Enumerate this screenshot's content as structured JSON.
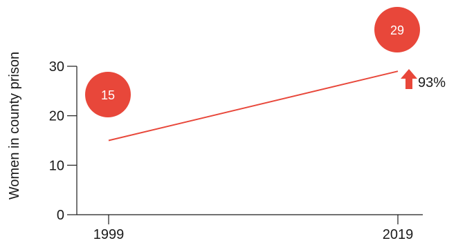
{
  "chart_data": {
    "type": "line",
    "ylabel": "Women in county prison",
    "x": [
      "1999",
      "2019"
    ],
    "series": [
      {
        "values": [
          15,
          29
        ]
      }
    ],
    "ylim": [
      0,
      30
    ],
    "yticks": [
      "0",
      "10",
      "20",
      "30"
    ],
    "grid": false,
    "annotations": {
      "start_value": "15",
      "end_value": "29",
      "change": "93%"
    },
    "colors": {
      "line": "#e8473a",
      "bubble": "#e8473a",
      "arrow": "#e8473a",
      "axis": "#1a1a1a"
    }
  }
}
